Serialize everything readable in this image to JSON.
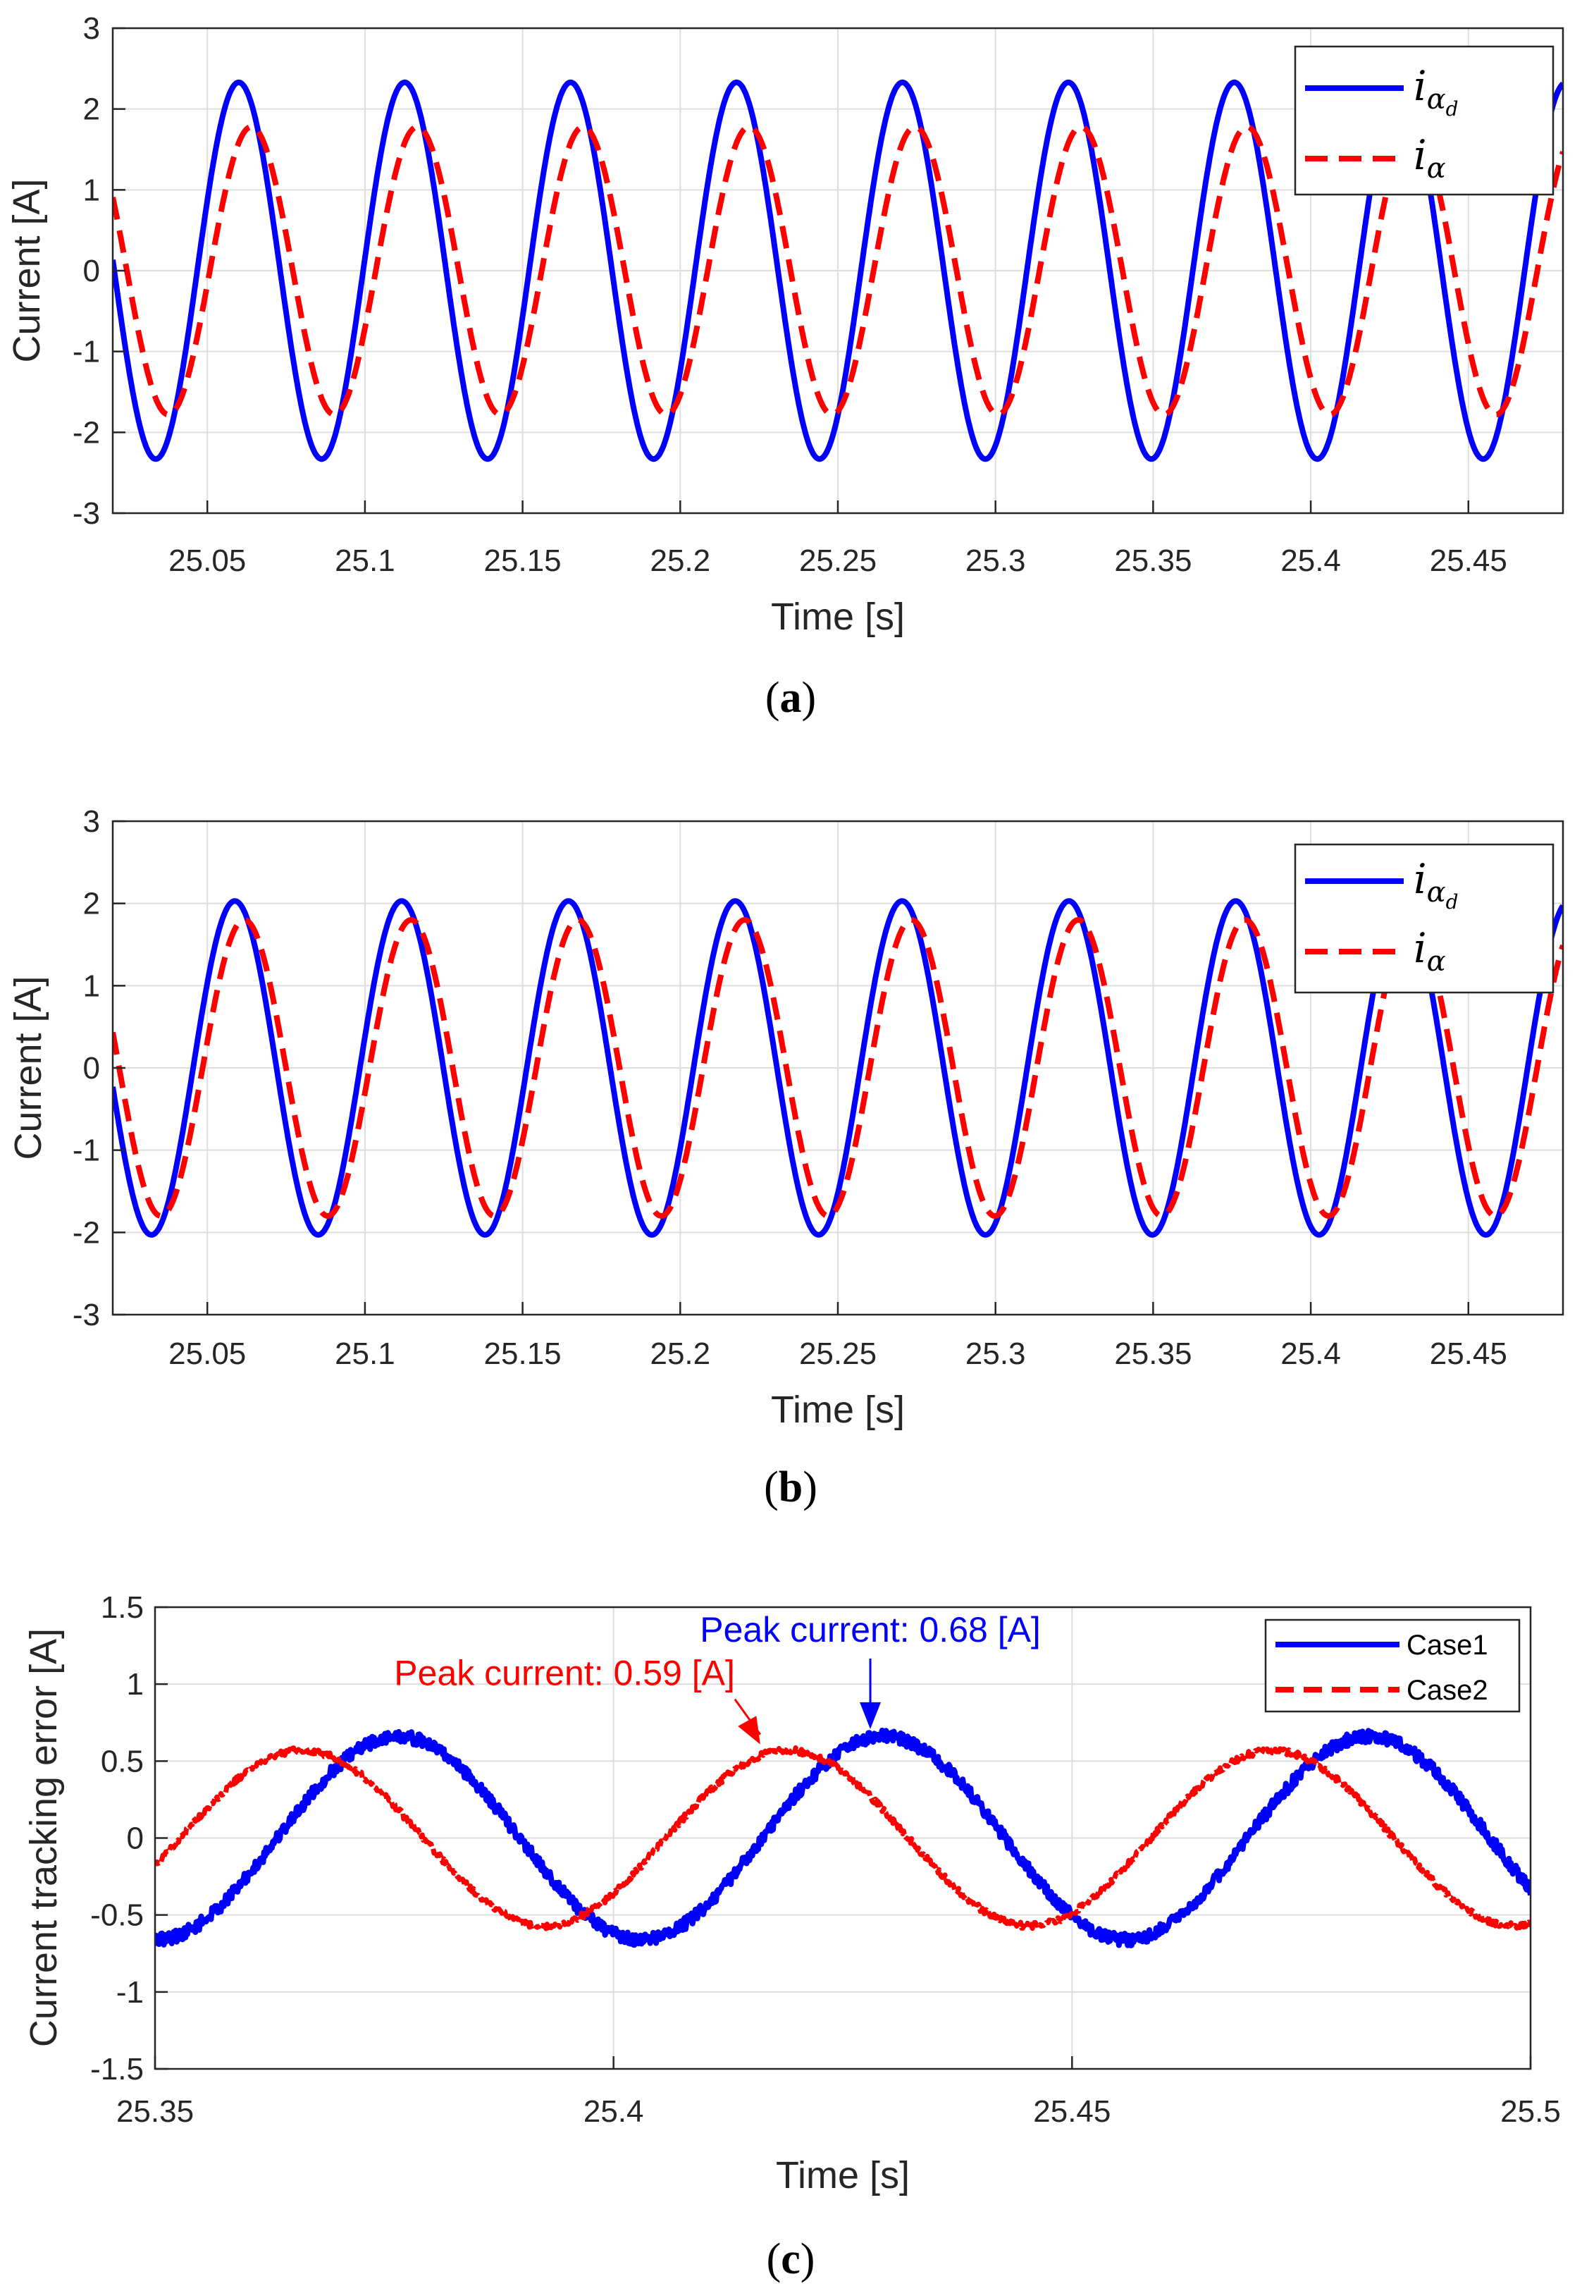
{
  "colors": {
    "series1": "#0000ff",
    "series2": "#ff0000",
    "grid": "#dedede",
    "axis": "#262626"
  },
  "chart_data": [
    {
      "type": "line",
      "caption": {
        "open": "(",
        "letter": "a",
        "close": ")"
      },
      "xlabel": "Time [s]",
      "ylabel": "Current [A]",
      "xlim": [
        25.02,
        25.48
      ],
      "ylim": [
        -3,
        3
      ],
      "xticks": [
        25.05,
        25.1,
        25.15,
        25.2,
        25.25,
        25.3,
        25.35,
        25.4,
        25.45
      ],
      "xtick_labels": [
        "25.05",
        "25.1",
        "25.15",
        "25.2",
        "25.25",
        "25.3",
        "25.35",
        "25.4",
        "25.45"
      ],
      "yticks": [
        -3,
        -2,
        -1,
        0,
        1,
        2,
        3
      ],
      "ytick_labels": [
        "-3",
        "-2",
        "-1",
        "0",
        "1",
        "2",
        "3"
      ],
      "grid": true,
      "legend_position": "top-right",
      "series": [
        {
          "name": "i_αd",
          "legend": {
            "base": "i",
            "sub": "α",
            "subsub": "d"
          },
          "style": "solid",
          "color": "#0000ff",
          "frequency_hz": 19.0,
          "amplitude": 2.33,
          "phase_zero_crossing_s": 25.0468
        },
        {
          "name": "i_α",
          "legend": {
            "base": "i",
            "sub": "α",
            "subsub": ""
          },
          "style": "dashed",
          "color": "#ff0000",
          "frequency_hz": 19.0,
          "amplitude": 1.78,
          "phase_zero_crossing_s": 25.0508
        }
      ]
    },
    {
      "type": "line",
      "caption": {
        "open": "(",
        "letter": "b",
        "close": ")"
      },
      "xlabel": "Time [s]",
      "ylabel": "Current [A]",
      "xlim": [
        25.02,
        25.48
      ],
      "ylim": [
        -3,
        3
      ],
      "xticks": [
        25.05,
        25.1,
        25.15,
        25.2,
        25.25,
        25.3,
        25.35,
        25.4,
        25.45
      ],
      "xtick_labels": [
        "25.05",
        "25.1",
        "25.15",
        "25.2",
        "25.25",
        "25.3",
        "25.35",
        "25.4",
        "25.45"
      ],
      "yticks": [
        -3,
        -2,
        -1,
        0,
        1,
        2,
        3
      ],
      "ytick_labels": [
        "-3",
        "-2",
        "-1",
        "0",
        "1",
        "2",
        "3"
      ],
      "grid": true,
      "legend_position": "top-right",
      "series": [
        {
          "name": "i_αd",
          "legend": {
            "base": "i",
            "sub": "α",
            "subsub": "d"
          },
          "style": "solid",
          "color": "#0000ff",
          "frequency_hz": 18.9,
          "amplitude": 2.03,
          "phase_zero_crossing_s": 25.0455
        },
        {
          "name": "i_α",
          "legend": {
            "base": "i",
            "sub": "α",
            "subsub": ""
          },
          "style": "dashed",
          "color": "#ff0000",
          "frequency_hz": 18.9,
          "amplitude": 1.8,
          "phase_zero_crossing_s": 25.0485
        }
      ]
    },
    {
      "type": "line",
      "caption": {
        "open": "(",
        "letter": "c",
        "close": ")"
      },
      "xlabel": "Time [s]",
      "ylabel": "Current tracking error [A]",
      "xlim": [
        25.35,
        25.5
      ],
      "ylim": [
        -1.5,
        1.5
      ],
      "xticks": [
        25.35,
        25.4,
        25.45,
        25.5
      ],
      "xtick_labels": [
        "25.35",
        "25.4",
        "25.45",
        "25.5"
      ],
      "yticks": [
        -1.5,
        -1,
        -0.5,
        0,
        0.5,
        1,
        1.5
      ],
      "ytick_labels": [
        "-1.5",
        "-1",
        "-0.5",
        "0",
        "0.5",
        "1",
        "1.5"
      ],
      "grid": true,
      "legend_position": "top-right",
      "series": [
        {
          "name": "Case1",
          "legend": {
            "text": "Case1"
          },
          "style": "solid",
          "color": "#0000ff",
          "frequency_hz": 18.9,
          "amplitude": 0.66,
          "phase_zero_crossing_s": 25.3633,
          "noise": 0.04
        },
        {
          "name": "Case2",
          "legend": {
            "text": "Case2"
          },
          "style": "dotted-dense",
          "color": "#ff0000",
          "frequency_hz": 18.9,
          "amplitude": 0.57,
          "phase_zero_crossing_s": 25.3528,
          "noise": 0.02
        }
      ],
      "annotations": [
        {
          "text": "Peak current: 0.68 [A]",
          "color": "#0000ff",
          "point": [
            25.428,
            0.69
          ]
        },
        {
          "text": "Peak current: 0.59 [A]",
          "color": "#ff0000",
          "point": [
            25.416,
            0.59
          ]
        }
      ]
    }
  ]
}
